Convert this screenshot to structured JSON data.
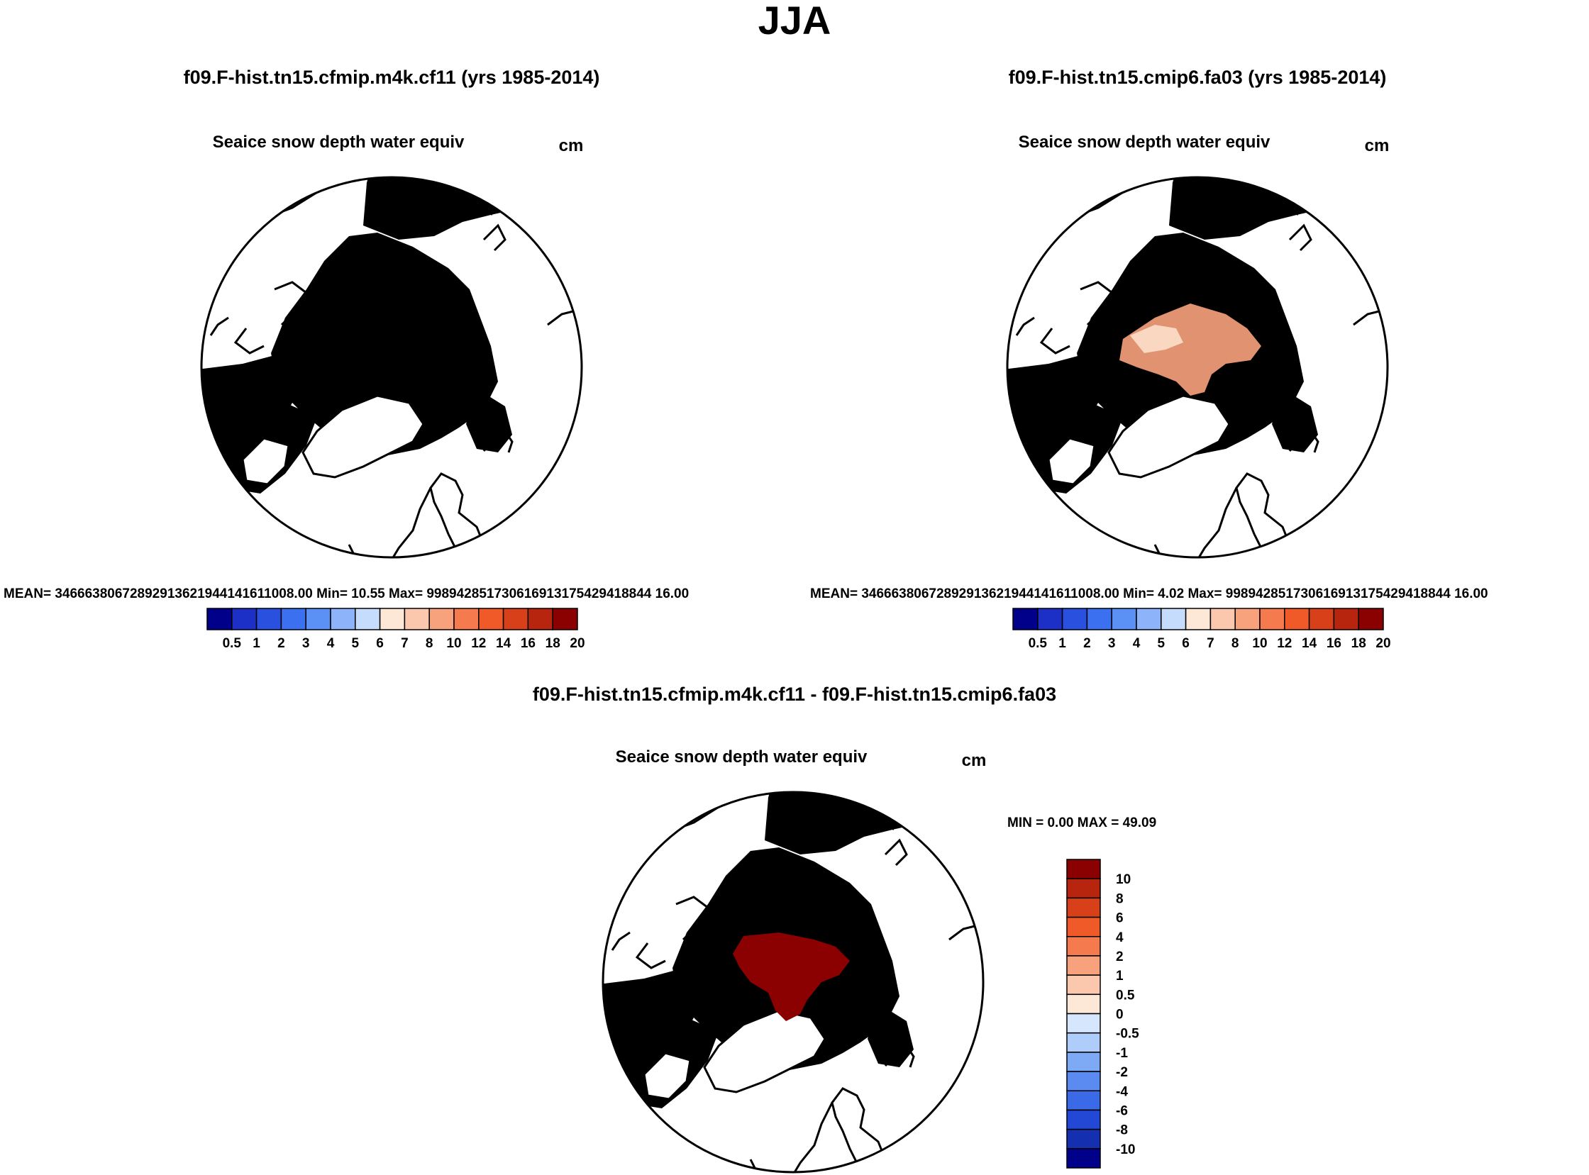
{
  "figure": {
    "season": "JJA",
    "panels": [
      {
        "run_title": "f09.F-hist.tn15.cfmip.m4k.cf11 (yrs 1985-2014)",
        "variable": "Seaice snow depth water equiv",
        "units": "cm",
        "stats": "MEAN= 34666380672892913621944141611008.00  Min=  10.55  Max= 998942851730616913175429418844 16.00"
      },
      {
        "run_title": "f09.F-hist.tn15.cmip6.fa03 (yrs 1985-2014)",
        "variable": "Seaice snow depth water equiv",
        "units": "cm",
        "stats": "MEAN= 34666380672892913621944141611008.00  Min=   4.02  Max= 998942851730616913175429418844 16.00"
      }
    ],
    "difference": {
      "run_title": "f09.F-hist.tn15.cfmip.m4k.cf11 - f09.F-hist.tn15.cmip6.fa03",
      "variable": "Seaice snow depth water equiv",
      "units": "cm",
      "minmax": "MIN =   0.00 MAX =  49.09"
    }
  },
  "colorbars": {
    "field": {
      "colors": [
        "#00008b",
        "#1c2fc7",
        "#2a50e0",
        "#3b70f0",
        "#5b90f5",
        "#8db4fa",
        "#c6dcfd",
        "#fde8d8",
        "#fbc8ad",
        "#f8a27d",
        "#f57b4f",
        "#ef5a28",
        "#d8401a",
        "#b8250f",
        "#8b0000"
      ],
      "labels": [
        "0.5",
        "1",
        "2",
        "3",
        "4",
        "5",
        "6",
        "7",
        "8",
        "10",
        "12",
        "14",
        "16",
        "18",
        "20"
      ]
    },
    "diff": {
      "colors": [
        "#8b0000",
        "#b8250f",
        "#d8401a",
        "#ef5a28",
        "#f57b4f",
        "#f8a27d",
        "#fbc8ad",
        "#fde8d8",
        "#d6e6fc",
        "#aecdfb",
        "#7ea9f5",
        "#5b8af0",
        "#3b6ae8",
        "#2348d6",
        "#1430b0",
        "#00008b"
      ],
      "labels": [
        "10",
        "8",
        "6",
        "4",
        "2",
        "1",
        "0.5",
        "0",
        "-0.5",
        "-1",
        "-2",
        "-4",
        "-6",
        "-8",
        "-10"
      ]
    }
  },
  "colors": {
    "ice_dark": "#8b0000",
    "ice_light": "#fde3cf",
    "land": "#ffffff",
    "coast": "#000000"
  }
}
